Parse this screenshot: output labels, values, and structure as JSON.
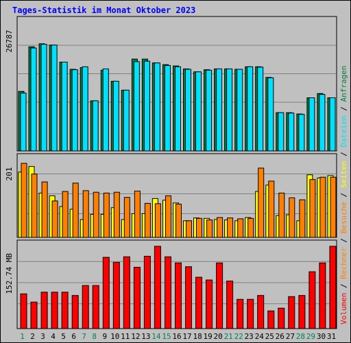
{
  "title": "Tages-Statistik im Monat Oktober 2023",
  "colors": {
    "background": "#c0c0c0",
    "anfragen": "#008040",
    "dateien": "#00e0ff",
    "seiten": "#ffff00",
    "besuche": "#ff8000",
    "rechner": "#ff8000",
    "volumen": "#ff0000",
    "weekend_day": "#00805c",
    "weekday": "#000000",
    "title": "#0000ff"
  },
  "chart_data": {
    "type": "bar",
    "categories": [
      "1",
      "2",
      "3",
      "4",
      "5",
      "6",
      "7",
      "8",
      "9",
      "10",
      "11",
      "12",
      "13",
      "14",
      "15",
      "16",
      "17",
      "18",
      "19",
      "20",
      "21",
      "22",
      "23",
      "24",
      "25",
      "26",
      "27",
      "28",
      "29",
      "30",
      "31"
    ],
    "weekend_days": [
      "1",
      "7",
      "8",
      "14",
      "15",
      "21",
      "22",
      "28",
      "29"
    ],
    "grid": true,
    "panels": [
      {
        "id": "hits",
        "ymax_label": "26787",
        "ylim": [
          0,
          26787
        ],
        "series": [
          {
            "name": "Anfragen",
            "values": [
              14000,
              24500,
              25200,
              24900,
              20900,
              19200,
              19600,
              11800,
              19000,
              16400,
              14300,
              21600,
              21600,
              20700,
              20300,
              20000,
              19300,
              18600,
              19100,
              19300,
              19300,
              19200,
              19800,
              19800,
              17300,
              9000,
              9000,
              8700,
              12500,
              13500,
              12500
            ]
          },
          {
            "name": "Dateien",
            "values": [
              13600,
              24200,
              25100,
              24900,
              20900,
              19100,
              19800,
              11800,
              19300,
              16400,
              14300,
              21000,
              21100,
              20700,
              20100,
              19800,
              19200,
              18600,
              19000,
              19300,
              19300,
              19200,
              19800,
              19700,
              17200,
              9000,
              8900,
              8600,
              12500,
              13300,
              12500
            ]
          }
        ]
      },
      {
        "id": "pages-visits",
        "ymax_label": "201",
        "ylim": [
          0,
          201
        ],
        "series": [
          {
            "name": "Seiten",
            "values": [
              165,
              179,
              112,
              105,
              78,
              71,
              45,
              58,
              58,
              75,
              45,
              60,
              60,
              98,
              94,
              87,
              42,
              49,
              48,
              45,
              44,
              42,
              50,
              116,
              132,
              55,
              57,
              42,
              158,
              150,
              156
            ]
          },
          {
            "name": "Besuche",
            "values": [
              187,
              160,
              140,
              92,
              116,
              137,
              118,
              114,
              112,
              114,
              101,
              117,
              86,
              85,
              105,
              84,
              42,
              48,
              44,
              50,
              49,
              47,
              48,
              175,
              142,
              112,
              100,
              95,
              146,
              152,
              152
            ]
          }
        ]
      },
      {
        "id": "volume",
        "ymax_label": "152.74 MB",
        "ylim": [
          0,
          152.74
        ],
        "series": [
          {
            "name": "Volumen",
            "values": [
              63,
              48,
              66,
              66,
              66,
              60,
              78,
              78,
              129,
              120,
              130,
              111,
              131,
              149,
              130,
              119,
              112,
              93,
              88,
              119,
              86,
              53,
              53,
              60,
              32,
              37,
              58,
              60,
              103,
              119,
              149
            ]
          }
        ]
      }
    ],
    "legend": [
      "Volumen",
      "Rechner",
      "Besuche",
      "Seiten",
      "Dateien",
      "Anfragen"
    ],
    "legend_separator": "/",
    "legend_position": "right-vertical"
  }
}
